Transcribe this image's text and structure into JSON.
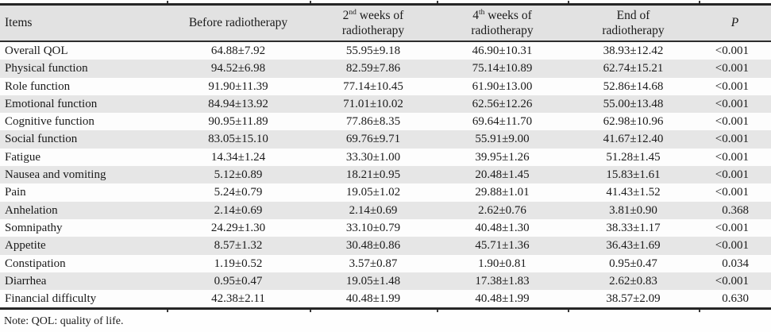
{
  "table": {
    "header": {
      "items": "Items",
      "before": "Before radiotherapy",
      "week2": {
        "base": "2",
        "sup": "nd",
        "rest": " weeks of",
        "line2": "radiotherapy"
      },
      "week4": {
        "base": "4",
        "sup": "th",
        "rest": " weeks of",
        "line2": "radiotherapy"
      },
      "end": {
        "line1": "End of",
        "line2": "radiotherapy"
      },
      "p": "P"
    },
    "rows": [
      {
        "item": "Overall QOL",
        "before": "64.88±7.92",
        "week2": "55.95±9.18",
        "week4": "46.90±10.31",
        "end": "38.93±12.42",
        "p": "<0.001"
      },
      {
        "item": "Physical function",
        "before": "94.52±6.98",
        "week2": "82.59±7.86",
        "week4": "75.14±10.89",
        "end": "62.74±15.21",
        "p": "<0.001"
      },
      {
        "item": "Role function",
        "before": "91.90±11.39",
        "week2": "77.14±10.45",
        "week4": "61.90±13.00",
        "end": "52.86±14.68",
        "p": "<0.001"
      },
      {
        "item": "Emotional function",
        "before": "84.94±13.92",
        "week2": "71.01±10.02",
        "week4": "62.56±12.26",
        "end": "55.00±13.48",
        "p": "<0.001"
      },
      {
        "item": "Cognitive function",
        "before": "90.95±11.89",
        "week2": "77.86±8.35",
        "week4": "69.64±11.70",
        "end": "62.98±10.96",
        "p": "<0.001"
      },
      {
        "item": "Social function",
        "before": "83.05±15.10",
        "week2": "69.76±9.71",
        "week4": "55.91±9.00",
        "end": "41.67±12.40",
        "p": "<0.001"
      },
      {
        "item": "Fatigue",
        "before": "14.34±1.24",
        "week2": "33.30±1.00",
        "week4": "39.95±1.26",
        "end": "51.28±1.45",
        "p": "<0.001"
      },
      {
        "item": "Nausea and vomiting",
        "before": "5.12±0.89",
        "week2": "18.21±0.95",
        "week4": "20.48±1.45",
        "end": "15.83±1.61",
        "p": "<0.001"
      },
      {
        "item": "Pain",
        "before": "5.24±0.79",
        "week2": "19.05±1.02",
        "week4": "29.88±1.01",
        "end": "41.43±1.52",
        "p": "<0.001"
      },
      {
        "item": "Anhelation",
        "before": "2.14±0.69",
        "week2": "2.14±0.69",
        "week4": "2.62±0.76",
        "end": "3.81±0.90",
        "p": "0.368"
      },
      {
        "item": "Somnipathy",
        "before": "24.29±1.30",
        "week2": "33.10±0.79",
        "week4": "40.48±1.30",
        "end": "38.33±1.17",
        "p": "<0.001"
      },
      {
        "item": "Appetite",
        "before": "8.57±1.32",
        "week2": "30.48±0.86",
        "week4": "45.71±1.36",
        "end": "36.43±1.69",
        "p": "<0.001"
      },
      {
        "item": "Constipation",
        "before": "1.19±0.52",
        "week2": "3.57±0.87",
        "week4": "1.90±0.81",
        "end": "0.95±0.47",
        "p": "0.034"
      },
      {
        "item": "Diarrhea",
        "before": "0.95±0.47",
        "week2": "19.05±1.48",
        "week4": "17.38±1.83",
        "end": "2.62±0.83",
        "p": "<0.001"
      },
      {
        "item": "Financial difficulty",
        "before": "42.38±2.11",
        "week2": "40.48±1.99",
        "week4": "40.48±1.99",
        "end": "38.57±2.09",
        "p": "0.630"
      }
    ],
    "note": "Note: QOL: quality of life."
  },
  "colors": {
    "header_bg": "#e2e2e2",
    "stripe_bg": "#e6e6e6",
    "rule": "#262626",
    "text": "#1a1a1a"
  }
}
